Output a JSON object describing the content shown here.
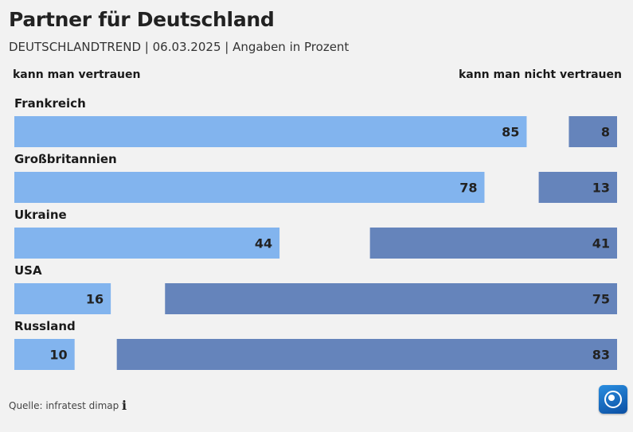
{
  "title": "Partner für Deutschland",
  "subtitle": "DEUTSCHLANDTREND | 06.03.2025 | Angaben in Prozent",
  "source": "Quelle: infratest dimap",
  "colors": {
    "trust": "#82b4ee",
    "distrust": "#6584bb",
    "background": "#f2f2f2"
  },
  "icons": {
    "info": "info-icon",
    "logo": "tagesschau-logo"
  },
  "chart_data": {
    "type": "bar",
    "orientation": "horizontal-diverging",
    "categories": [
      "Frankreich",
      "Großbritannien",
      "Ukraine",
      "USA",
      "Russland"
    ],
    "series": [
      {
        "name": "kann man vertrauen",
        "values": [
          85,
          78,
          44,
          16,
          10
        ]
      },
      {
        "name": "kann man nicht vertrauen",
        "values": [
          8,
          13,
          41,
          75,
          83
        ]
      }
    ],
    "unit": "%",
    "ylim": [
      0,
      100
    ],
    "legend": "top"
  }
}
